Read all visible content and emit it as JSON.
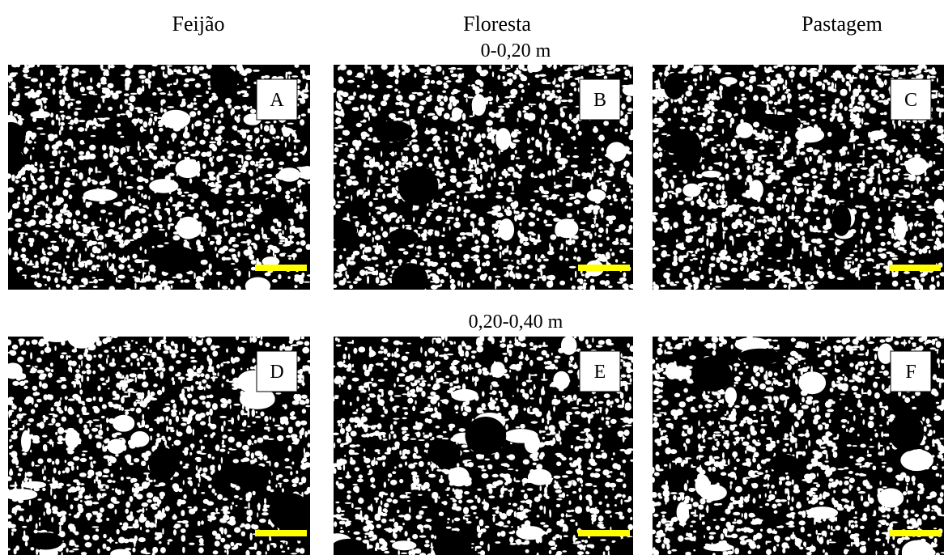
{
  "columns": [
    "Feijão",
    "Floresta",
    "Pastagem"
  ],
  "rows": [
    "0-0,20 m",
    "0,20-0,40 m"
  ],
  "panels": [
    {
      "label": "A"
    },
    {
      "label": "B"
    },
    {
      "label": "C"
    },
    {
      "label": "D"
    },
    {
      "label": "E"
    },
    {
      "label": "F"
    }
  ]
}
